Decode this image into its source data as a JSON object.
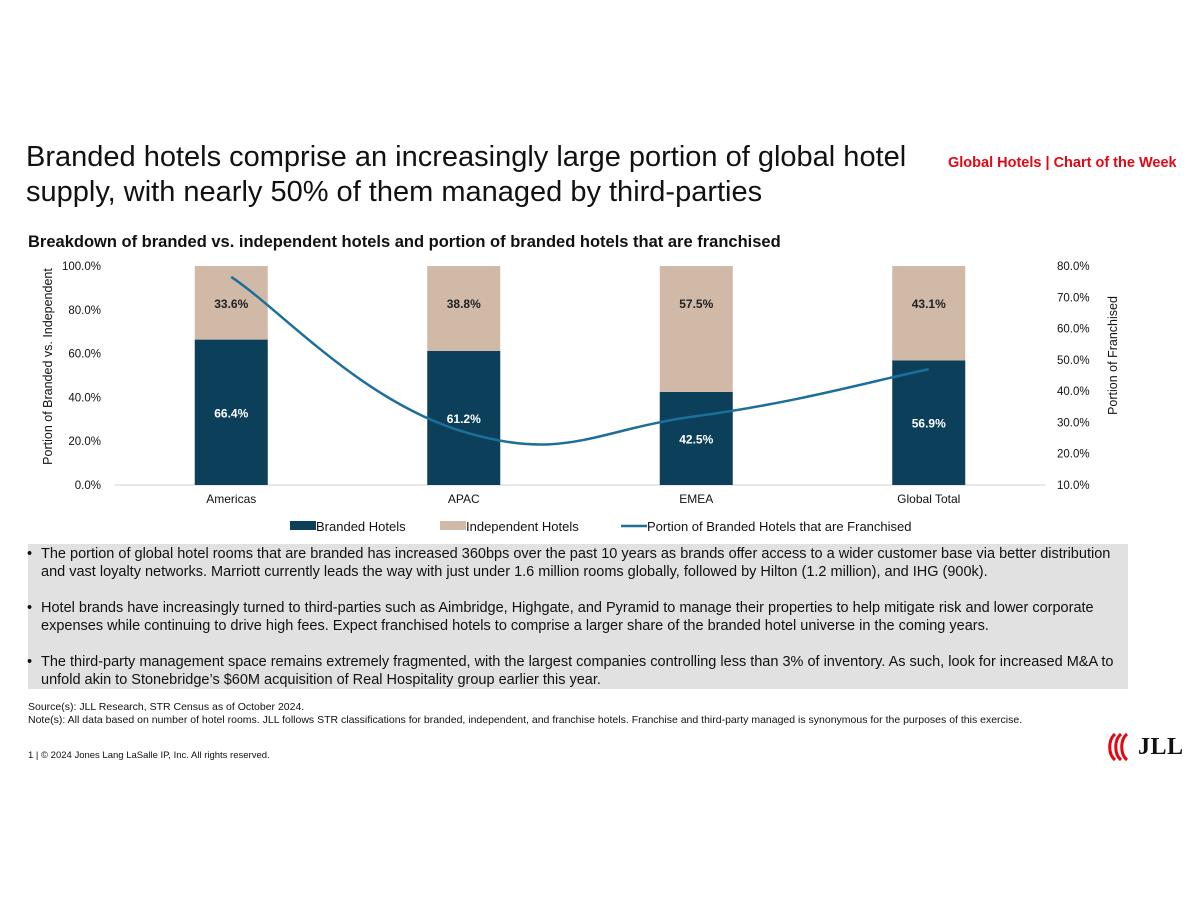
{
  "header": {
    "title": "Branded hotels comprise an increasingly large portion of global hotel supply, with nearly 50% of them managed by third-parties",
    "tag": "Global Hotels | Chart of the Week"
  },
  "chart_data": {
    "type": "bar",
    "title": "Breakdown of branded vs. independent hotels and portion of branded hotels that are franchised",
    "categories": [
      "Americas",
      "APAC",
      "EMEA",
      "Global Total"
    ],
    "stacked": true,
    "series": [
      {
        "name": "Branded Hotels",
        "type": "bar",
        "axis": "left",
        "values": [
          66.4,
          61.2,
          42.5,
          56.9
        ],
        "labels": [
          "66.4%",
          "61.2%",
          "42.5%",
          "56.9%"
        ],
        "color": "#0c3f5a"
      },
      {
        "name": "Independent Hotels",
        "type": "bar",
        "axis": "left",
        "values": [
          33.6,
          38.8,
          57.5,
          43.1
        ],
        "labels": [
          "33.6%",
          "38.8%",
          "57.5%",
          "43.1%"
        ],
        "color": "#d1b9a7"
      },
      {
        "name": "Portion of Branded Hotels that are Franchised",
        "type": "line",
        "axis": "right",
        "values": [
          76.5,
          27.0,
          32.0,
          47.0
        ],
        "color": "#1c6f9a"
      }
    ],
    "ylabel": "Portion of Branded vs. Independent",
    "ylim": [
      0,
      100
    ],
    "yticks": [
      "0.0%",
      "20.0%",
      "40.0%",
      "60.0%",
      "80.0%",
      "100.0%"
    ],
    "y2label": "Portion of Franchised",
    "y2lim": [
      10,
      80
    ],
    "y2ticks": [
      "10.0%",
      "20.0%",
      "30.0%",
      "40.0%",
      "50.0%",
      "60.0%",
      "70.0%",
      "80.0%"
    ],
    "legend": "bottom",
    "grid": false
  },
  "bullets": [
    "The portion of global hotel rooms that are branded has increased 360bps over the past 10 years as brands offer access to a wider customer base via better distribution and vast loyalty networks. Marriott currently leads the way with just under 1.6 million rooms globally, followed by Hilton (1.2 million), and IHG (900k).",
    "Hotel brands have increasingly turned to third-parties such as Aimbridge, Highgate, and Pyramid to manage their properties to help mitigate risk and lower corporate expenses while continuing to drive high fees. Expect franchised hotels to comprise a larger share of the branded hotel universe in the coming years.",
    "The third-party management space remains extremely fragmented, with the largest companies controlling less than 3% of inventory. As such, look for increased M&A to unfold akin to Stonebridge’s $60M acquisition of Real Hospitality group earlier this year."
  ],
  "footnotes": {
    "source": "Source(s): JLL Research, STR Census as of October 2024.",
    "note": "Note(s): All data based on number of hotel rooms. JLL follows STR classifications for branded, independent, and franchise hotels. Franchise and third-party managed is synonymous for the purposes of this exercise."
  },
  "footer": {
    "copyright": "1 | © 2024 Jones Lang LaSalle IP, Inc. All rights reserved.",
    "logo_text": "JLL",
    "logo_color": "#e30613"
  }
}
